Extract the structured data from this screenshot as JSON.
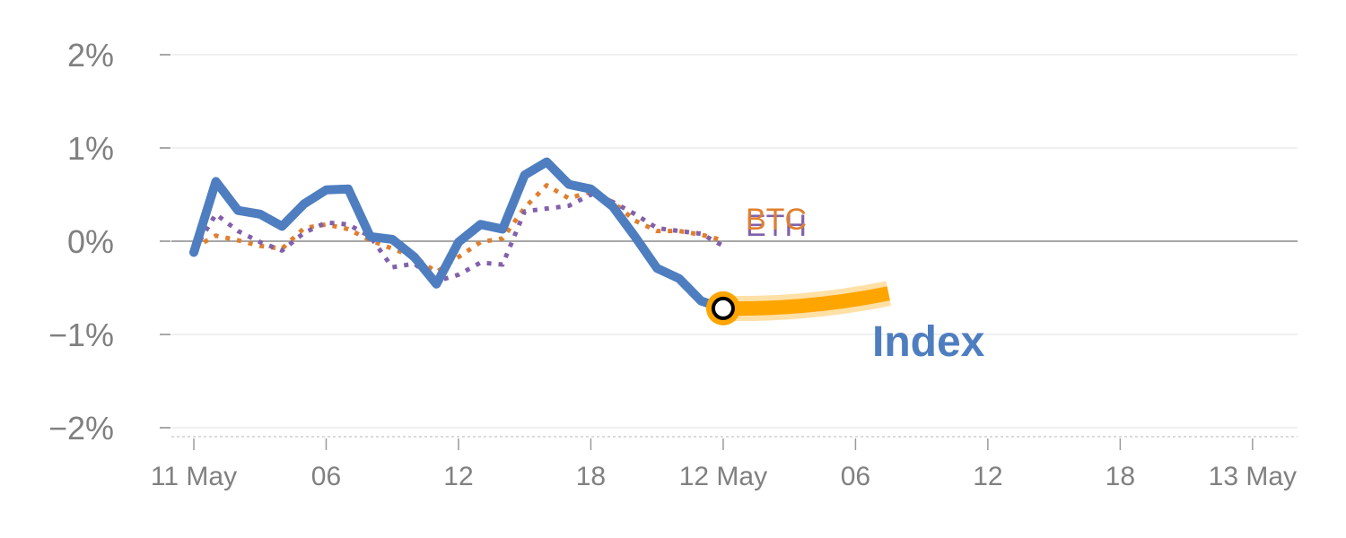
{
  "chart_data": {
    "type": "line",
    "title": "",
    "xlabel": "",
    "ylabel": "",
    "ylim": [
      -2,
      2
    ],
    "yticks": [
      {
        "value": 2,
        "label": "2%"
      },
      {
        "value": 1,
        "label": "1%"
      },
      {
        "value": 0,
        "label": "0%"
      },
      {
        "value": -1,
        "label": "−1%"
      },
      {
        "value": -2,
        "label": "−2%"
      }
    ],
    "x_range_hours": [
      -1,
      50.5
    ],
    "xticks": [
      {
        "hour": 0,
        "label": "11 May"
      },
      {
        "hour": 6,
        "label": "06"
      },
      {
        "hour": 12,
        "label": "12"
      },
      {
        "hour": 18,
        "label": "18"
      },
      {
        "hour": 24,
        "label": "12 May"
      },
      {
        "hour": 30,
        "label": "06"
      },
      {
        "hour": 36,
        "label": "12"
      },
      {
        "hour": 42,
        "label": "18"
      },
      {
        "hour": 48,
        "label": "13 May"
      }
    ],
    "x_hours": [
      0,
      1,
      2,
      3,
      4,
      5,
      6,
      7,
      8,
      9,
      10,
      11,
      12,
      13,
      14,
      15,
      16,
      17,
      18,
      19,
      20,
      21,
      22,
      23,
      24
    ],
    "series": [
      {
        "name": "Index",
        "label": "Index",
        "color": "#4E7EC0",
        "style": "solid",
        "values": [
          -0.12,
          0.64,
          0.33,
          0.29,
          0.16,
          0.4,
          0.55,
          0.56,
          0.05,
          0.02,
          -0.17,
          -0.46,
          -0.01,
          0.18,
          0.13,
          0.71,
          0.85,
          0.61,
          0.56,
          0.37,
          0.05,
          -0.29,
          -0.4,
          -0.64,
          -0.72
        ]
      },
      {
        "name": "BTC",
        "label": "BTC",
        "color": "#E07F2E",
        "style": "dotted",
        "values": [
          -0.07,
          0.06,
          0.01,
          -0.05,
          -0.08,
          0.14,
          0.18,
          0.13,
          0.01,
          -0.08,
          -0.17,
          -0.33,
          -0.17,
          -0.01,
          0.03,
          0.36,
          0.6,
          0.46,
          0.53,
          0.42,
          0.22,
          0.11,
          0.11,
          0.07,
          0.01
        ]
      },
      {
        "name": "ETH",
        "label": "ETH",
        "color": "#8260AB",
        "style": "dotted",
        "values": [
          -0.1,
          0.29,
          0.11,
          -0.01,
          -0.1,
          0.09,
          0.2,
          0.18,
          0.05,
          -0.28,
          -0.24,
          -0.43,
          -0.36,
          -0.23,
          -0.25,
          0.32,
          0.35,
          0.38,
          0.5,
          0.42,
          0.29,
          0.14,
          0.11,
          0.08,
          -0.05
        ]
      }
    ],
    "current_point": {
      "series": "Index",
      "hour": 24,
      "value": -0.72
    },
    "projection": {
      "color": "#FFA500",
      "from": {
        "hour": 24,
        "value": -0.72
      },
      "to": {
        "hour": 31.5,
        "value": -0.56
      }
    },
    "grid": true
  }
}
